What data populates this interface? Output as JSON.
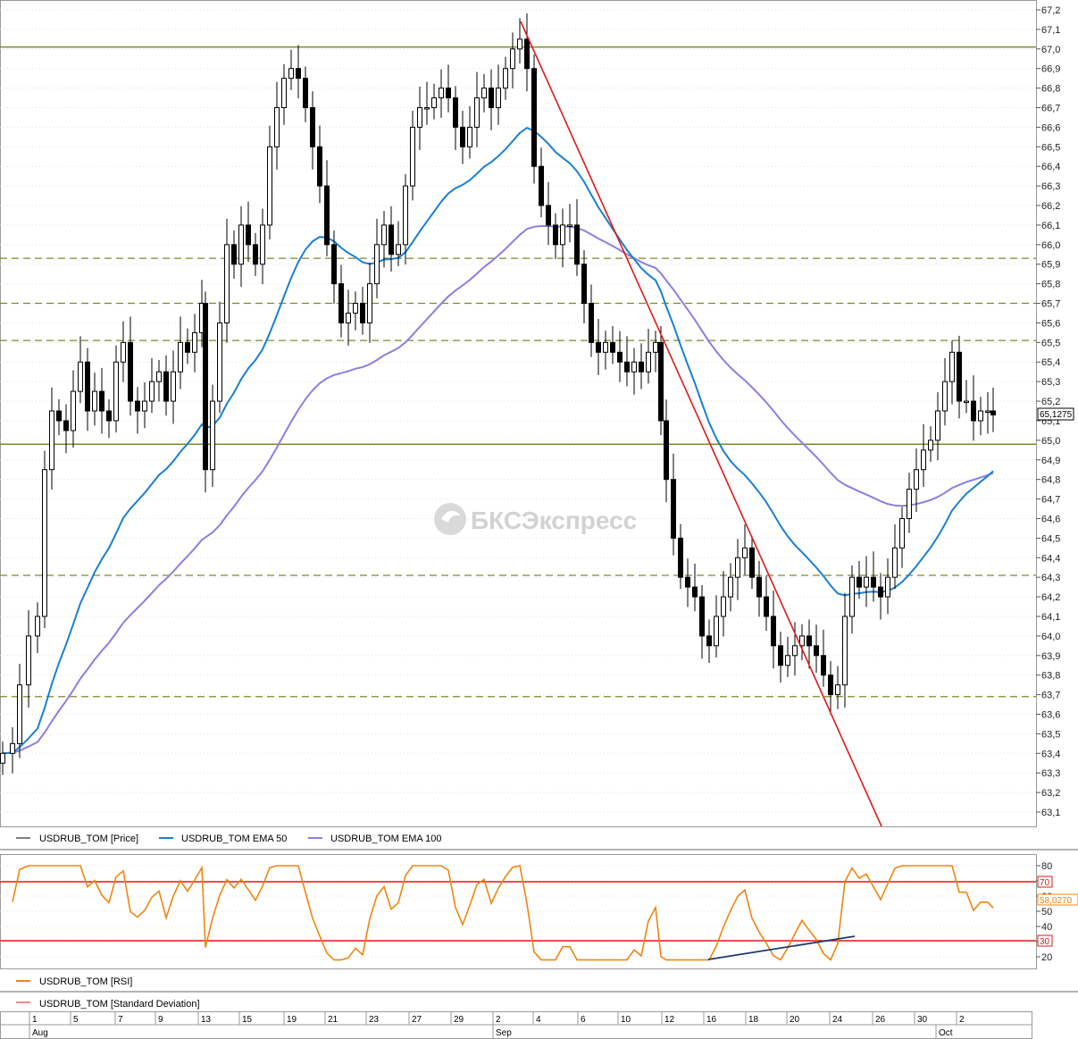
{
  "watermark": "БКСЭкспресс",
  "price_panel": {
    "legend": [
      {
        "label": "USDRUB_TOM [Price]",
        "color": "#000000"
      },
      {
        "label": "USDRUB_TOM EMA 50",
        "color": "#1a7fd4"
      },
      {
        "label": "USDRUB_TOM EMA 100",
        "color": "#8a7fe6"
      }
    ],
    "y_ticks": [
      "67,2",
      "67,1",
      "67,0",
      "66,9",
      "66,8",
      "66,7",
      "66,6",
      "66,5",
      "66,4",
      "66,3",
      "66,2",
      "66,1",
      "66,0",
      "65,9",
      "65,8",
      "65,7",
      "65,6",
      "65,5",
      "65,4",
      "65,3",
      "65,2",
      "65,1",
      "65,0",
      "64,9",
      "64,8",
      "64,7",
      "64,6",
      "64,5",
      "64,4",
      "64,3",
      "64,2",
      "64,1",
      "64,0",
      "63,9",
      "63,8",
      "63,7",
      "63,6",
      "63,5",
      "63,4",
      "63,3",
      "63,2",
      "63,1"
    ],
    "last_price_label": "65,1275",
    "solid_levels": [
      67.01,
      64.98
    ],
    "dashed_levels": [
      65.93,
      65.7,
      65.51,
      64.31,
      63.69
    ]
  },
  "rsi_panel": {
    "legend": [
      {
        "label": "USDRUB_TOM [RSI]",
        "color": "#f0850f"
      },
      {
        "label": "USDRUB_TOM [Standard Deviation]",
        "color": "#e02020"
      }
    ],
    "y_ticks": [
      "80",
      "70",
      "60",
      "50",
      "40",
      "30",
      "20"
    ],
    "level_labels": [
      "70",
      "30"
    ],
    "last_value_label": "58,0270",
    "levels": [
      70,
      30
    ]
  },
  "time_axis": {
    "days": [
      "1",
      "5",
      "7",
      "9",
      "13",
      "15",
      "19",
      "21",
      "23",
      "27",
      "29",
      "2",
      "4",
      "6",
      "10",
      "12",
      "16",
      "18",
      "20",
      "24",
      "26",
      "30",
      "2"
    ],
    "months": [
      "Aug",
      "Sep",
      "Oct"
    ]
  },
  "chart_data": {
    "type": "candlestick",
    "series": [
      {
        "name": "USDRUB_TOM [Price]",
        "summary": {
          "last": 65.1275,
          "high": 67.15,
          "low": 63.1
        }
      },
      {
        "name": "USDRUB_TOM EMA 50"
      },
      {
        "name": "USDRUB_TOM EMA 100"
      },
      {
        "name": "USDRUB_TOM [RSI]",
        "last": 58.027
      }
    ],
    "ylim": [
      63.0,
      67.25
    ],
    "rsi_ylim": [
      15,
      85
    ]
  }
}
